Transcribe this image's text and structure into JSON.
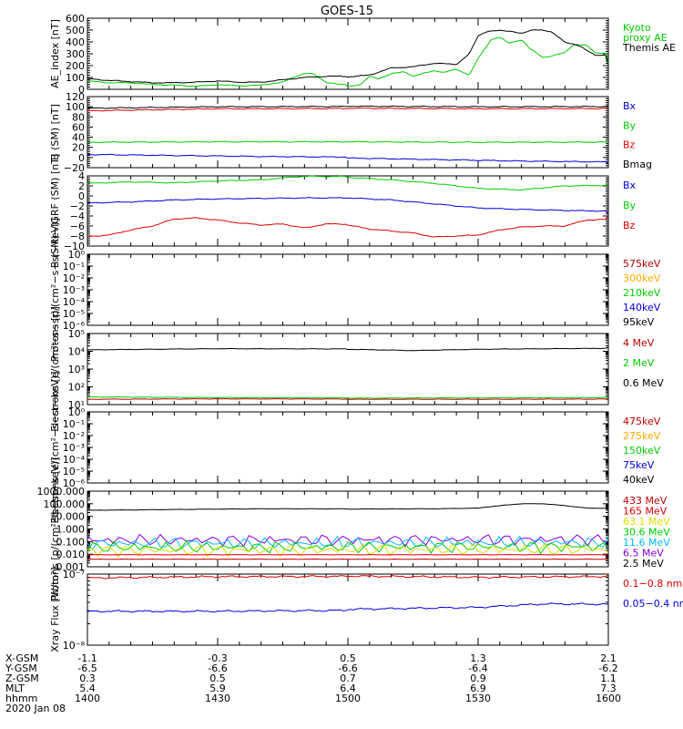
{
  "title": "GOES-15",
  "colors": {
    "black": "#000000",
    "red": "#dd0000",
    "green": "#00cc00",
    "blue": "#0000dd",
    "orange": "#ffaa00",
    "cyan": "#00bbff",
    "purple": "#8800dd",
    "yellow": "#dddd00",
    "darkred": "#bb0000"
  },
  "chart_data": [
    {
      "id": "ae",
      "type": "line",
      "ylabel": "AE_index [nT]",
      "ylim": [
        0,
        600
      ],
      "yticks": [
        "0",
        "100",
        "200",
        "300",
        "400",
        "500",
        "600"
      ],
      "legend": [
        {
          "label": "Kyoto proxy AE",
          "color": "#00cc00"
        },
        {
          "label": "Themis AE",
          "color": "#000000"
        }
      ],
      "series": [
        {
          "name": "Kyoto proxy AE",
          "color": "#00cc00",
          "x": [
            1400,
            1405,
            1410,
            1415,
            1420,
            1425,
            1430,
            1435,
            1440,
            1445,
            1448,
            1450,
            1452,
            1455,
            1458,
            1500,
            1503,
            1505,
            1507,
            1510,
            1513,
            1515,
            1518,
            1520,
            1522,
            1525,
            1528,
            1530,
            1533,
            1535,
            1537,
            1540,
            1542,
            1545,
            1547,
            1550,
            1552,
            1555,
            1557,
            1600
          ],
          "y": [
            70,
            55,
            55,
            40,
            35,
            25,
            40,
            30,
            35,
            60,
            110,
            135,
            130,
            60,
            40,
            25,
            40,
            110,
            90,
            130,
            150,
            110,
            140,
            160,
            140,
            170,
            120,
            260,
            420,
            440,
            390,
            420,
            340,
            270,
            280,
            310,
            380,
            370,
            310,
            220
          ]
        },
        {
          "name": "Themis AE",
          "color": "#000000",
          "x": [
            1400,
            1405,
            1410,
            1415,
            1420,
            1425,
            1430,
            1435,
            1440,
            1445,
            1450,
            1455,
            1500,
            1505,
            1510,
            1515,
            1520,
            1525,
            1528,
            1530,
            1532,
            1535,
            1538,
            1540,
            1543,
            1545,
            1547,
            1550,
            1553,
            1555,
            1557,
            1600
          ],
          "y": [
            90,
            75,
            65,
            55,
            55,
            60,
            70,
            60,
            60,
            80,
            100,
            110,
            105,
            120,
            180,
            190,
            220,
            210,
            300,
            450,
            490,
            495,
            490,
            470,
            505,
            500,
            480,
            400,
            370,
            330,
            290,
            200
          ]
        }
      ]
    },
    {
      "id": "bsm",
      "type": "line",
      "ylabel": "B (SM) [nT]",
      "ylim": [
        -20,
        120
      ],
      "yticks": [
        "−20",
        "0",
        "20",
        "40",
        "60",
        "80",
        "100",
        "120"
      ],
      "legend": [
        {
          "label": "Bx",
          "color": "#0000dd"
        },
        {
          "label": "By",
          "color": "#00cc00"
        },
        {
          "label": "Bz",
          "color": "#dd0000"
        },
        {
          "label": "Bmag",
          "color": "#000000"
        }
      ],
      "series": [
        {
          "name": "Bmag",
          "color": "#000000",
          "x": [
            1400,
            1430,
            1500,
            1530,
            1600
          ],
          "y": [
            97,
            100,
            101,
            100,
            101
          ]
        },
        {
          "name": "Bz",
          "color": "#dd0000",
          "x": [
            1400,
            1430,
            1500,
            1530,
            1600
          ],
          "y": [
            92,
            96,
            97,
            96,
            97
          ]
        },
        {
          "name": "By",
          "color": "#00cc00",
          "x": [
            1400,
            1430,
            1500,
            1530,
            1600
          ],
          "y": [
            30,
            31,
            31,
            30,
            31
          ]
        },
        {
          "name": "Bx",
          "color": "#0000dd",
          "x": [
            1400,
            1420,
            1440,
            1500,
            1520,
            1540,
            1600
          ],
          "y": [
            6,
            4,
            2,
            -1,
            -4,
            -7,
            -12
          ]
        }
      ]
    },
    {
      "id": "bdiff",
      "type": "line",
      "ylabel": "B (SM)−IGRF (SM) [nT]",
      "ylim": [
        -10,
        4
      ],
      "yticks": [
        "−10",
        "−8",
        "−6",
        "−4",
        "−2",
        "0",
        "2",
        "4"
      ],
      "legend": [
        {
          "label": "Bx",
          "color": "#0000dd"
        },
        {
          "label": "By",
          "color": "#00cc00"
        },
        {
          "label": "Bz",
          "color": "#dd0000"
        }
      ],
      "series": [
        {
          "name": "By",
          "color": "#00cc00",
          "x": [
            1400,
            1410,
            1420,
            1430,
            1440,
            1445,
            1450,
            1500,
            1510,
            1520,
            1530,
            1540,
            1550,
            1600
          ],
          "y": [
            2.5,
            2.8,
            2.6,
            3.0,
            3.2,
            3.6,
            3.9,
            3.7,
            3.2,
            2.5,
            1.5,
            1.2,
            2.0,
            2.5
          ]
        },
        {
          "name": "Bx",
          "color": "#0000dd",
          "x": [
            1400,
            1410,
            1420,
            1430,
            1440,
            1450,
            1500,
            1510,
            1520,
            1530,
            1540,
            1550,
            1600
          ],
          "y": [
            -1.4,
            -1.2,
            -0.8,
            -0.6,
            -0.5,
            -0.4,
            -0.4,
            -0.8,
            -1.6,
            -2.4,
            -2.7,
            -2.9,
            -3.6
          ]
        },
        {
          "name": "Bz",
          "color": "#dd0000",
          "x": [
            1400,
            1405,
            1410,
            1415,
            1420,
            1425,
            1430,
            1435,
            1440,
            1445,
            1450,
            1455,
            1500,
            1505,
            1510,
            1515,
            1520,
            1525,
            1530,
            1535,
            1540,
            1545,
            1550,
            1555,
            1600
          ],
          "y": [
            -8.1,
            -7.8,
            -6.8,
            -6.0,
            -4.6,
            -4.4,
            -4.8,
            -5.4,
            -5.8,
            -5.6,
            -6.4,
            -5.6,
            -5.8,
            -6.6,
            -7.0,
            -7.4,
            -8.2,
            -8.0,
            -7.8,
            -6.8,
            -6.2,
            -6.0,
            -6.0,
            -4.8,
            -3.8
          ]
        }
      ]
    },
    {
      "id": "protons_low",
      "type": "line",
      "ylabel": "Protons [p/(cm²−s−sr−keV)]",
      "scale": "log",
      "ylim": [
        1e-06,
        1
      ],
      "yticks": [
        "10⁻⁶",
        "10⁻⁵",
        "10⁻⁴",
        "10⁻³",
        "10⁻²",
        "10⁻¹",
        "10⁰"
      ],
      "legend": [
        {
          "label": "575keV",
          "color": "#bb0000"
        },
        {
          "label": "300keV",
          "color": "#ffaa00"
        },
        {
          "label": "210keV",
          "color": "#00cc00"
        },
        {
          "label": "140keV",
          "color": "#0000dd"
        },
        {
          "label": "95keV",
          "color": "#000000"
        }
      ],
      "series": []
    },
    {
      "id": "electrons_high",
      "type": "line",
      "ylabel": "Electrons [e/(cm²−s−sr)]",
      "scale": "log",
      "ylim": [
        10,
        100000
      ],
      "yticks": [
        "10¹",
        "10²",
        "10³",
        "10⁴",
        "10⁵"
      ],
      "legend": [
        {
          "label": "4 MeV",
          "color": "#bb0000"
        },
        {
          "label": "2 MeV",
          "color": "#00cc00"
        },
        {
          "label": "0.6 MeV",
          "color": "#000000"
        }
      ],
      "series": [
        {
          "name": "0.6 MeV",
          "color": "#000000",
          "x": [
            1400,
            1430,
            1500,
            1515,
            1530,
            1600
          ],
          "y": [
            12000,
            14000,
            13000,
            11000,
            13000,
            17000
          ]
        },
        {
          "name": "2 MeV",
          "color": "#00cc00",
          "x": [
            1400,
            1430,
            1500,
            1530,
            1600
          ],
          "y": [
            27,
            25,
            23,
            24,
            26
          ]
        },
        {
          "name": "4 MeV",
          "color": "#bb0000",
          "x": [
            1400,
            1430,
            1500,
            1530,
            1600
          ],
          "y": [
            20,
            21,
            20,
            20,
            21
          ]
        }
      ]
    },
    {
      "id": "electrons_low",
      "type": "line",
      "ylabel": "Electrons [e/(cm²−s−sr−keV)]",
      "scale": "log",
      "ylim": [
        1e-06,
        1
      ],
      "yticks": [
        "10⁻⁶",
        "10⁻⁵",
        "10⁻⁴",
        "10⁻³",
        "10⁻²",
        "10⁻¹",
        "10⁰"
      ],
      "legend": [
        {
          "label": "475keV",
          "color": "#bb0000"
        },
        {
          "label": "275keV",
          "color": "#ffaa00"
        },
        {
          "label": "150keV",
          "color": "#00cc00"
        },
        {
          "label": "75keV",
          "color": "#0000dd"
        },
        {
          "label": "40keV",
          "color": "#000000"
        }
      ],
      "series": []
    },
    {
      "id": "protons_high",
      "type": "line",
      "ylabel": "Protons [p/(cm²−s−sr−keV)]",
      "scale": "log",
      "ylim": [
        0.001,
        1000
      ],
      "yticks": [
        "0.001",
        "0.010",
        "0.100",
        "1.000",
        "10.000",
        "100.000",
        "1000.000"
      ],
      "legend": [
        {
          "label": "433 MeV",
          "color": "#bb0000"
        },
        {
          "label": "165 MeV",
          "color": "#dd0000"
        },
        {
          "label": "63.1 MeV",
          "color": "#dddd00"
        },
        {
          "label": "30.6 MeV",
          "color": "#00cc00"
        },
        {
          "label": "11.6 MeV",
          "color": "#00bbff"
        },
        {
          "label": "6.5 MeV",
          "color": "#8800dd"
        },
        {
          "label": "2.5 MeV",
          "color": "#000000"
        }
      ],
      "series": [
        {
          "name": "2.5 MeV",
          "color": "#000000",
          "x": [
            1400,
            1420,
            1440,
            1500,
            1520,
            1530,
            1535,
            1540,
            1545,
            1550,
            1555,
            1600
          ],
          "y": [
            30,
            35,
            40,
            38,
            40,
            45,
            70,
            100,
            100,
            70,
            45,
            35
          ]
        },
        {
          "name": "6.5 MeV",
          "color": "#8800dd",
          "noise": true,
          "x": [
            1400,
            1600
          ],
          "y": [
            0.13,
            0.15
          ]
        },
        {
          "name": "11.6 MeV",
          "color": "#00bbff",
          "noise": true,
          "x": [
            1400,
            1600
          ],
          "y": [
            0.07,
            0.09
          ]
        },
        {
          "name": "30.6 MeV",
          "color": "#00cc00",
          "noise": true,
          "x": [
            1400,
            1600
          ],
          "y": [
            0.035,
            0.04
          ]
        },
        {
          "name": "63.1 MeV",
          "color": "#dddd00",
          "noise": true,
          "x": [
            1400,
            1600
          ],
          "y": [
            0.02,
            0.025
          ]
        },
        {
          "name": "165 MeV",
          "color": "#dd0000",
          "x": [
            1400,
            1600
          ],
          "y": [
            0.009,
            0.009
          ]
        },
        {
          "name": "433 MeV",
          "color": "#bb0000",
          "x": [
            1400,
            1600
          ],
          "y": [
            0.004,
            0.004
          ]
        }
      ]
    },
    {
      "id": "xray",
      "type": "line",
      "ylabel": "Xray Flux [W/m²]",
      "scale": "log",
      "ylim": [
        1e-08,
        1e-07
      ],
      "yticks": [
        "10⁻⁸",
        "10⁻⁷"
      ],
      "legend": [
        {
          "label": "0.1−0.8 nm",
          "color": "#dd0000"
        },
        {
          "label": "0.05−0.4 nm",
          "color": "#0000dd"
        }
      ],
      "series": [
        {
          "name": "0.1−0.8 nm",
          "color": "#dd0000",
          "x": [
            1400,
            1430,
            1500,
            1530,
            1600
          ],
          "y": [
            8.8e-08,
            9.2e-08,
            9.4e-08,
            9e-08,
            9.6e-08
          ]
        },
        {
          "name": "0.05−0.4 nm",
          "color": "#0000dd",
          "x": [
            1400,
            1430,
            1500,
            1530,
            1545,
            1600
          ],
          "y": [
            3e-08,
            3e-08,
            3.2e-08,
            3.4e-08,
            3.8e-08,
            3.7e-08
          ]
        }
      ]
    }
  ],
  "x_axis": {
    "xlim": [
      1400,
      1600
    ],
    "tick_positions": [
      1400,
      1430,
      1500,
      1530,
      1600
    ],
    "rows": [
      {
        "label": "X-GSM",
        "values": [
          "-1.1",
          "-0.3",
          "0.5",
          "1.3",
          "2.1"
        ]
      },
      {
        "label": "Y-GSM",
        "values": [
          "-6.5",
          "-6.6",
          "-6.6",
          "-6.4",
          "-6.2"
        ]
      },
      {
        "label": "Z-GSM",
        "values": [
          "0.3",
          "0.5",
          "0.7",
          "0.9",
          "1.1"
        ]
      },
      {
        "label": "MLT",
        "values": [
          "5.4",
          "5.9",
          "6.4",
          "6.9",
          "7.3"
        ]
      },
      {
        "label": "hhmm",
        "values": [
          "1400",
          "1430",
          "1500",
          "1530",
          "1600"
        ]
      }
    ],
    "date": "2020 Jan 08"
  }
}
